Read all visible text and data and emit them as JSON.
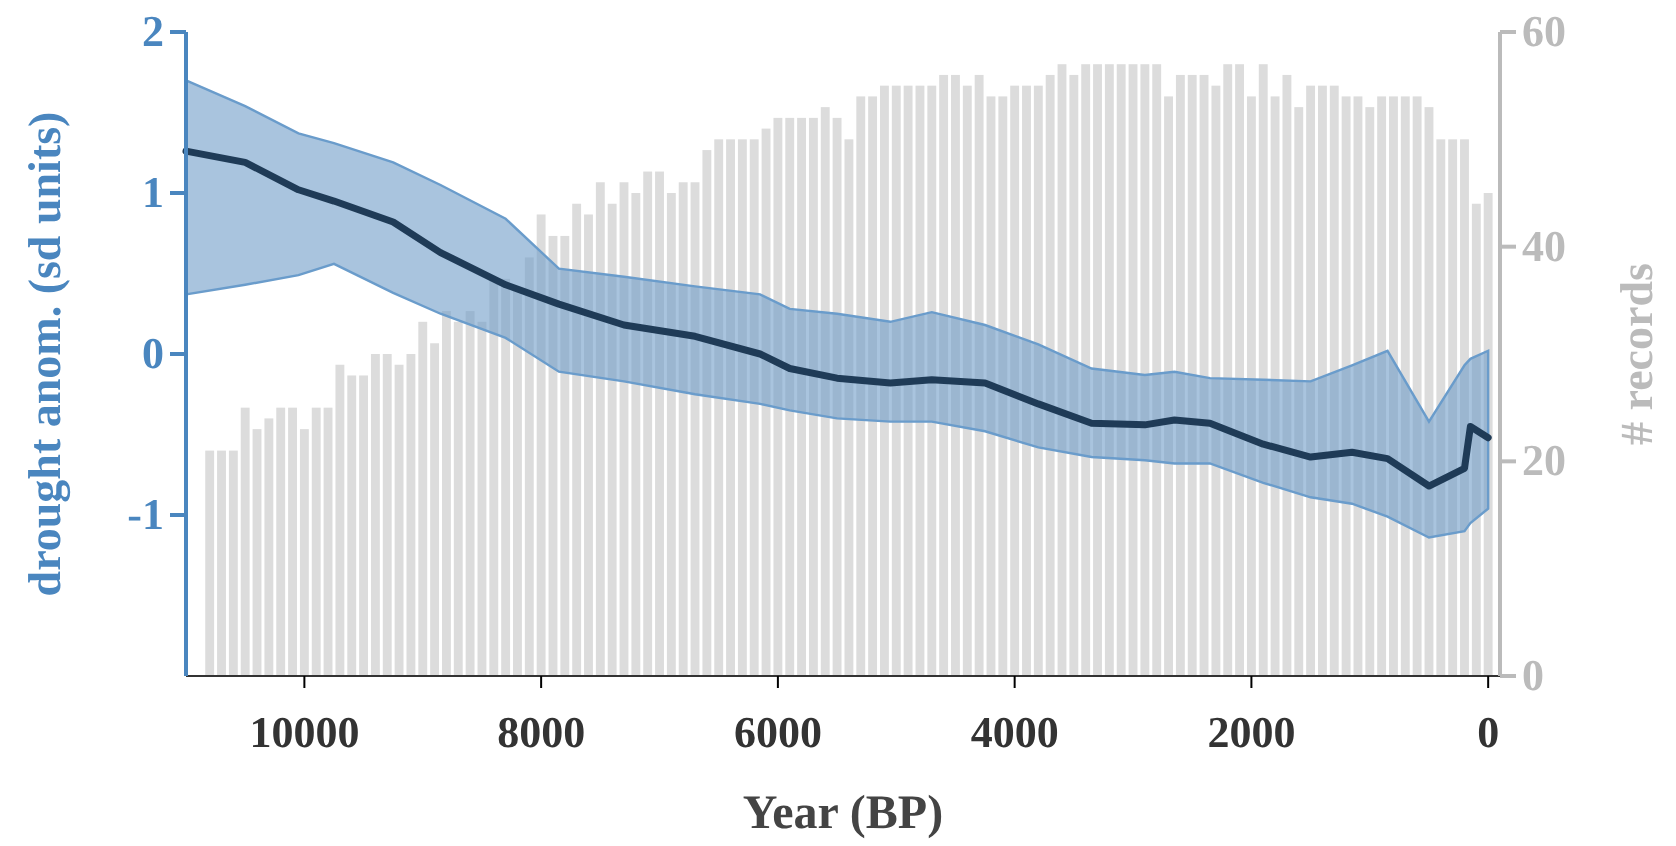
{
  "chart_data": {
    "type": "line",
    "xlabel": "Year (BP)",
    "ylabel": "drought anom. (sd units)",
    "y2label": "# records",
    "xlim": [
      11000,
      -100
    ],
    "xticks": [
      10000,
      8000,
      6000,
      4000,
      2000,
      0
    ],
    "ylim": [
      -2,
      2
    ],
    "yticks": [
      -1,
      0,
      1,
      2
    ],
    "y2lim": [
      0,
      60
    ],
    "y2ticks": [
      0,
      20,
      40,
      60
    ],
    "series": [
      {
        "type": "bar",
        "axis": "y2",
        "color": "#dcdcdc",
        "x": [
          10800,
          10700,
          10600,
          10500,
          10400,
          10300,
          10200,
          10100,
          10000,
          9900,
          9800,
          9700,
          9600,
          9500,
          9400,
          9300,
          9200,
          9100,
          9000,
          8900,
          8800,
          8700,
          8600,
          8500,
          8400,
          8300,
          8200,
          8100,
          8000,
          7900,
          7800,
          7700,
          7600,
          7500,
          7400,
          7300,
          7200,
          7100,
          7000,
          6900,
          6800,
          6700,
          6600,
          6500,
          6400,
          6300,
          6200,
          6100,
          6000,
          5900,
          5800,
          5700,
          5600,
          5500,
          5400,
          5300,
          5200,
          5100,
          5000,
          4900,
          4800,
          4700,
          4600,
          4500,
          4400,
          4300,
          4200,
          4100,
          4000,
          3900,
          3800,
          3700,
          3600,
          3500,
          3400,
          3300,
          3200,
          3100,
          3000,
          2900,
          2800,
          2700,
          2600,
          2500,
          2400,
          2300,
          2200,
          2100,
          2000,
          1900,
          1800,
          1700,
          1600,
          1500,
          1400,
          1300,
          1200,
          1100,
          1000,
          900,
          800,
          700,
          600,
          500,
          400,
          300,
          200,
          100,
          0
        ],
        "values": [
          21,
          21,
          21,
          25,
          23,
          24,
          25,
          25,
          23,
          25,
          25,
          29,
          28,
          28,
          30,
          30,
          29,
          30,
          33,
          31,
          34,
          33,
          34,
          33,
          37,
          37,
          36,
          39,
          43,
          41,
          41,
          44,
          43,
          46,
          44,
          46,
          45,
          47,
          47,
          45,
          46,
          46,
          49,
          50,
          50,
          50,
          50,
          51,
          52,
          52,
          52,
          52,
          53,
          52,
          50,
          54,
          54,
          55,
          55,
          55,
          55,
          55,
          56,
          56,
          55,
          56,
          54,
          54,
          55,
          55,
          55,
          56,
          57,
          56,
          57,
          57,
          57,
          57,
          57,
          57,
          57,
          54,
          56,
          56,
          56,
          55,
          57,
          57,
          54,
          57,
          54,
          56,
          53,
          55,
          55,
          55,
          54,
          54,
          53,
          54,
          54,
          54,
          54,
          53,
          50,
          50,
          50,
          44,
          45
        ]
      },
      {
        "color": "#1f3b57",
        "x": [
          11000,
          10500,
          10050,
          9750,
          9250,
          8850,
          8300,
          7850,
          7300,
          6700,
          6150,
          5900,
          5500,
          5050,
          4700,
          4250,
          3800,
          3350,
          2900,
          2650,
          2350,
          1900,
          1500,
          1150,
          850,
          500,
          200,
          150,
          0
        ],
        "values": [
          1.26,
          1.19,
          1.02,
          0.95,
          0.82,
          0.63,
          0.43,
          0.31,
          0.18,
          0.11,
          0.0,
          -0.09,
          -0.15,
          -0.18,
          -0.16,
          -0.18,
          -0.31,
          -0.43,
          -0.44,
          -0.41,
          -0.43,
          -0.56,
          -0.64,
          -0.61,
          -0.65,
          -0.82,
          -0.71,
          -0.45,
          -0.52
        ],
        "upper": [
          1.7,
          1.54,
          1.37,
          1.31,
          1.19,
          1.05,
          0.84,
          0.53,
          0.48,
          0.42,
          0.37,
          0.28,
          0.25,
          0.2,
          0.26,
          0.18,
          0.06,
          -0.09,
          -0.13,
          -0.11,
          -0.15,
          -0.16,
          -0.17,
          -0.07,
          0.02,
          -0.42,
          -0.07,
          -0.03,
          0.02
        ],
        "lower": [
          0.37,
          0.43,
          0.49,
          0.56,
          0.38,
          0.25,
          0.1,
          -0.11,
          -0.17,
          -0.25,
          -0.31,
          -0.35,
          -0.4,
          -0.42,
          -0.42,
          -0.48,
          -0.58,
          -0.64,
          -0.66,
          -0.68,
          -0.68,
          -0.8,
          -0.89,
          -0.93,
          -1.01,
          -1.14,
          -1.1,
          -1.05,
          -0.96
        ]
      }
    ]
  }
}
